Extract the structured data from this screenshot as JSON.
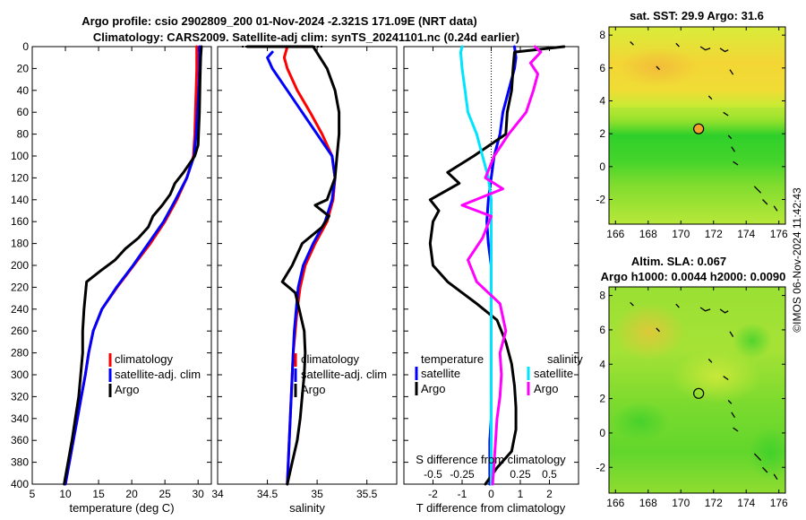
{
  "title_line1": "Argo profile: csio 2902809_200 01-Nov-2024 -2.321S 171.09E (NRT data)",
  "title_line2": "Climatology: CARS2009. Satellite-adj clim: synTS_20241101.nc (0.24d earlier)",
  "watermark": "©IMOS 06-Nov-2024 11:42:43",
  "colors": {
    "climatology": "#ff0000",
    "satellite": "#0000ff",
    "argo": "#000000",
    "sat_diff": "#00e5ff",
    "argo_diff": "#ff00ff"
  },
  "chart_data": [
    {
      "id": "temperature",
      "type": "line",
      "xlabel": "temperature (deg C)",
      "ylabel": "",
      "xlim": [
        5,
        32
      ],
      "ylim": [
        0,
        400
      ],
      "xticks": [
        "5",
        "10",
        "15",
        "20",
        "25",
        "30"
      ],
      "yticks": [
        "0",
        "20",
        "40",
        "60",
        "80",
        "100",
        "120",
        "140",
        "160",
        "180",
        "200",
        "220",
        "240",
        "260",
        "280",
        "300",
        "320",
        "340",
        "360",
        "380",
        "400"
      ],
      "legend": [
        "climatology",
        "satellite-adj. clim",
        "Argo"
      ],
      "series": [
        {
          "name": "climatology",
          "color": "#ff0000",
          "points": [
            [
              29.8,
              0
            ],
            [
              29.8,
              20
            ],
            [
              29.7,
              40
            ],
            [
              29.6,
              60
            ],
            [
              29.5,
              80
            ],
            [
              29.3,
              100
            ],
            [
              28.3,
              120
            ],
            [
              26.8,
              140
            ],
            [
              25.0,
              160
            ],
            [
              22.8,
              180
            ],
            [
              20.3,
              200
            ],
            [
              17.8,
              220
            ],
            [
              15.5,
              240
            ],
            [
              14.2,
              260
            ],
            [
              13.5,
              280
            ],
            [
              13.0,
              300
            ],
            [
              12.4,
              320
            ],
            [
              11.8,
              340
            ],
            [
              11.2,
              360
            ],
            [
              10.6,
              380
            ],
            [
              10.0,
              400
            ]
          ]
        },
        {
          "name": "satellite-adj. clim",
          "color": "#0000ff",
          "points": [
            [
              30.2,
              0
            ],
            [
              30.2,
              20
            ],
            [
              30.1,
              40
            ],
            [
              29.9,
              60
            ],
            [
              29.7,
              80
            ],
            [
              29.4,
              100
            ],
            [
              28.3,
              120
            ],
            [
              26.6,
              140
            ],
            [
              24.8,
              160
            ],
            [
              22.5,
              180
            ],
            [
              20.2,
              200
            ],
            [
              17.7,
              220
            ],
            [
              15.5,
              240
            ],
            [
              14.2,
              260
            ],
            [
              13.5,
              280
            ],
            [
              13.0,
              300
            ],
            [
              12.4,
              320
            ],
            [
              11.8,
              340
            ],
            [
              11.2,
              360
            ],
            [
              10.6,
              380
            ],
            [
              10.0,
              400
            ]
          ]
        },
        {
          "name": "Argo",
          "color": "#000000",
          "points": [
            [
              30.5,
              0
            ],
            [
              30.4,
              10
            ],
            [
              30.3,
              30
            ],
            [
              30.2,
              60
            ],
            [
              30.0,
              90
            ],
            [
              29.5,
              100
            ],
            [
              27.8,
              115
            ],
            [
              26.5,
              125
            ],
            [
              25.8,
              135
            ],
            [
              24.6,
              145
            ],
            [
              23.2,
              155
            ],
            [
              22.5,
              165
            ],
            [
              21.0,
              175
            ],
            [
              19.0,
              185
            ],
            [
              17.5,
              195
            ],
            [
              15.3,
              205
            ],
            [
              13.2,
              215
            ],
            [
              12.8,
              240
            ],
            [
              12.6,
              260
            ],
            [
              12.6,
              280
            ],
            [
              12.3,
              300
            ],
            [
              12.0,
              320
            ],
            [
              11.5,
              340
            ],
            [
              11.0,
              360
            ],
            [
              10.4,
              380
            ],
            [
              9.8,
              400
            ]
          ]
        }
      ]
    },
    {
      "id": "salinity",
      "type": "line",
      "xlabel": "salinity",
      "xlim": [
        34,
        35.8
      ],
      "ylim": [
        0,
        400
      ],
      "xticks": [
        "34",
        "34.5",
        "35",
        "35.5"
      ],
      "legend": [
        "climatology",
        "satellite-adj. clim",
        "Argo"
      ],
      "series": [
        {
          "name": "climatology",
          "color": "#ff0000",
          "points": [
            [
              34.7,
              0
            ],
            [
              34.67,
              10
            ],
            [
              34.7,
              20
            ],
            [
              34.8,
              40
            ],
            [
              34.93,
              60
            ],
            [
              35.05,
              80
            ],
            [
              35.15,
              100
            ],
            [
              35.18,
              120
            ],
            [
              35.16,
              140
            ],
            [
              35.1,
              160
            ],
            [
              34.98,
              180
            ],
            [
              34.88,
              200
            ],
            [
              34.83,
              220
            ],
            [
              34.8,
              240
            ],
            [
              34.78,
              260
            ],
            [
              34.76,
              280
            ],
            [
              34.75,
              300
            ],
            [
              34.74,
              320
            ],
            [
              34.73,
              340
            ],
            [
              34.72,
              360
            ],
            [
              34.71,
              380
            ],
            [
              34.7,
              400
            ]
          ]
        },
        {
          "name": "satellite-adj. clim",
          "color": "#0000ff",
          "points": [
            [
              34.55,
              5
            ],
            [
              34.5,
              10
            ],
            [
              34.55,
              20
            ],
            [
              34.7,
              40
            ],
            [
              34.85,
              60
            ],
            [
              35.0,
              80
            ],
            [
              35.15,
              100
            ],
            [
              35.18,
              120
            ],
            [
              35.15,
              140
            ],
            [
              35.08,
              160
            ],
            [
              34.96,
              180
            ],
            [
              34.86,
              200
            ],
            [
              34.81,
              220
            ],
            [
              34.79,
              240
            ],
            [
              34.77,
              260
            ],
            [
              34.76,
              280
            ],
            [
              34.75,
              300
            ],
            [
              34.74,
              320
            ],
            [
              34.73,
              340
            ],
            [
              34.72,
              360
            ],
            [
              34.71,
              380
            ],
            [
              34.7,
              400
            ]
          ]
        },
        {
          "name": "Argo",
          "color": "#000000",
          "points": [
            [
              34.3,
              0
            ],
            [
              34.96,
              0
            ],
            [
              35.1,
              20
            ],
            [
              35.18,
              40
            ],
            [
              35.22,
              60
            ],
            [
              35.22,
              80
            ],
            [
              35.2,
              100
            ],
            [
              35.18,
              120
            ],
            [
              35.1,
              140
            ],
            [
              34.98,
              145
            ],
            [
              35.12,
              155
            ],
            [
              35.05,
              165
            ],
            [
              34.85,
              180
            ],
            [
              34.75,
              200
            ],
            [
              34.65,
              215
            ],
            [
              34.78,
              225
            ],
            [
              34.82,
              240
            ],
            [
              34.87,
              260
            ],
            [
              34.88,
              280
            ],
            [
              34.87,
              300
            ],
            [
              34.85,
              320
            ],
            [
              34.83,
              340
            ],
            [
              34.8,
              360
            ],
            [
              34.75,
              380
            ],
            [
              34.7,
              400
            ]
          ]
        }
      ]
    },
    {
      "id": "difference",
      "type": "line",
      "xlabel": "T difference from climatology",
      "xlabel_top": "S difference from climatology",
      "xlim": [
        -3,
        3
      ],
      "ylim": [
        0,
        400
      ],
      "xticks": [
        "-2",
        "-1",
        "0",
        "1",
        "2"
      ],
      "sticks": [
        "-0.5",
        "-0.25",
        "0",
        "0.25",
        "0.5"
      ],
      "legend_t_title": "temperature",
      "legend_s_title": "salinity",
      "legend_t": [
        "satellite",
        "Argo"
      ],
      "legend_s": [
        "satellite",
        "Argo"
      ],
      "series": [
        {
          "name": "T satellite",
          "color": "#0000ff",
          "points": [
            [
              0.8,
              0
            ],
            [
              0.85,
              10
            ],
            [
              0.8,
              20
            ],
            [
              0.6,
              40
            ],
            [
              0.4,
              60
            ],
            [
              0.3,
              80
            ],
            [
              0.1,
              100
            ],
            [
              0.0,
              120
            ],
            [
              -0.1,
              140
            ],
            [
              -0.15,
              160
            ],
            [
              -0.1,
              180
            ],
            [
              0.0,
              200
            ],
            [
              0.0,
              220
            ],
            [
              0.0,
              240
            ],
            [
              0.0,
              260
            ],
            [
              0.0,
              280
            ],
            [
              0.0,
              300
            ],
            [
              0.0,
              320
            ],
            [
              0.0,
              340
            ],
            [
              -0.05,
              360
            ],
            [
              -0.05,
              380
            ],
            [
              -0.05,
              400
            ]
          ]
        },
        {
          "name": "T Argo",
          "color": "#000000",
          "points": [
            [
              2.5,
              0
            ],
            [
              0.8,
              5
            ],
            [
              0.75,
              20
            ],
            [
              0.7,
              40
            ],
            [
              0.55,
              60
            ],
            [
              0.5,
              80
            ],
            [
              -0.6,
              100
            ],
            [
              -1.5,
              115
            ],
            [
              -1.1,
              125
            ],
            [
              -2.1,
              140
            ],
            [
              -1.8,
              150
            ],
            [
              -2.0,
              160
            ],
            [
              -2.1,
              180
            ],
            [
              -2.0,
              200
            ],
            [
              -1.5,
              215
            ],
            [
              -0.5,
              235
            ],
            [
              0.2,
              250
            ],
            [
              0.5,
              270
            ],
            [
              0.7,
              290
            ],
            [
              0.8,
              310
            ],
            [
              0.85,
              330
            ],
            [
              0.85,
              350
            ],
            [
              0.7,
              370
            ],
            [
              0.2,
              385
            ],
            [
              -0.2,
              400
            ]
          ]
        },
        {
          "name": "S satellite",
          "color": "#00e5ff",
          "points": [
            [
              -1.0,
              0
            ],
            [
              -1.05,
              5
            ],
            [
              -1.0,
              20
            ],
            [
              -0.9,
              40
            ],
            [
              -0.8,
              60
            ],
            [
              -0.5,
              80
            ],
            [
              -0.3,
              100
            ],
            [
              -0.1,
              120
            ],
            [
              0.0,
              140
            ],
            [
              0.0,
              160
            ],
            [
              0.0,
              180
            ],
            [
              0.0,
              200
            ],
            [
              0.0,
              220
            ],
            [
              0.0,
              240
            ],
            [
              0.0,
              260
            ],
            [
              0.0,
              280
            ],
            [
              0.0,
              300
            ],
            [
              0.0,
              320
            ],
            [
              0.0,
              340
            ],
            [
              0.0,
              360
            ],
            [
              0.0,
              380
            ],
            [
              0.0,
              400
            ]
          ]
        },
        {
          "name": "S Argo",
          "color": "#ff00ff",
          "points": [
            [
              1.5,
              0
            ],
            [
              1.7,
              5
            ],
            [
              1.35,
              15
            ],
            [
              1.6,
              25
            ],
            [
              1.45,
              40
            ],
            [
              1.2,
              60
            ],
            [
              0.6,
              80
            ],
            [
              0.1,
              100
            ],
            [
              -0.2,
              120
            ],
            [
              0.4,
              130
            ],
            [
              -1.0,
              145
            ],
            [
              0.0,
              155
            ],
            [
              -0.3,
              175
            ],
            [
              -0.8,
              195
            ],
            [
              -0.5,
              215
            ],
            [
              0.3,
              235
            ],
            [
              0.5,
              260
            ],
            [
              0.3,
              280
            ],
            [
              0.35,
              300
            ],
            [
              0.3,
              320
            ],
            [
              0.2,
              340
            ],
            [
              0.15,
              360
            ],
            [
              0.1,
              380
            ],
            [
              0.05,
              400
            ]
          ]
        }
      ]
    },
    {
      "id": "sst_map",
      "type": "heatmap",
      "title": "sat. SST: 29.9 Argo: 31.6",
      "xlim": [
        165.6,
        176.4
      ],
      "ylim": [
        -3.5,
        8.5
      ],
      "xticks": [
        "166",
        "168",
        "170",
        "172",
        "174",
        "176"
      ],
      "yticks": [
        "8",
        "6",
        "4",
        "2",
        "0",
        "-2"
      ],
      "marker": {
        "lon": 171.09,
        "lat": 2.3
      }
    },
    {
      "id": "sla_map",
      "type": "heatmap",
      "title": "Altim. SLA: 0.067",
      "subtitle": "Argo h1000: 0.0044 h2000: 0.0090",
      "xlim": [
        165.6,
        176.4
      ],
      "ylim": [
        -3.5,
        8.5
      ],
      "xticks": [
        "166",
        "168",
        "170",
        "172",
        "174",
        "176"
      ],
      "yticks": [
        "8",
        "6",
        "4",
        "2",
        "0",
        "-2"
      ],
      "marker": {
        "lon": 171.09,
        "lat": 2.3
      }
    }
  ]
}
